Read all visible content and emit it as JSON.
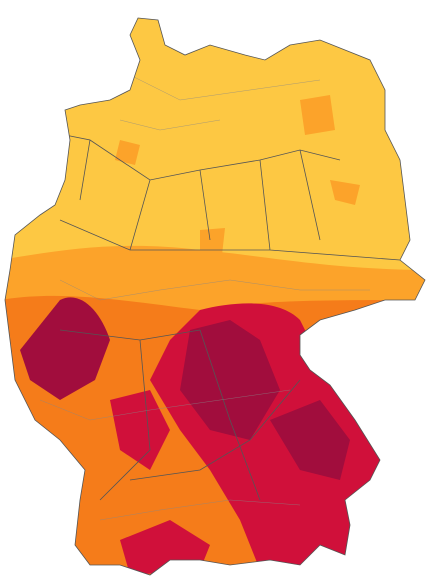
{
  "map": {
    "colors": [
      "#fdc843",
      "#fca32a",
      "#f57c1a",
      "#d0103a",
      "#a10d3d"
    ]
  }
}
